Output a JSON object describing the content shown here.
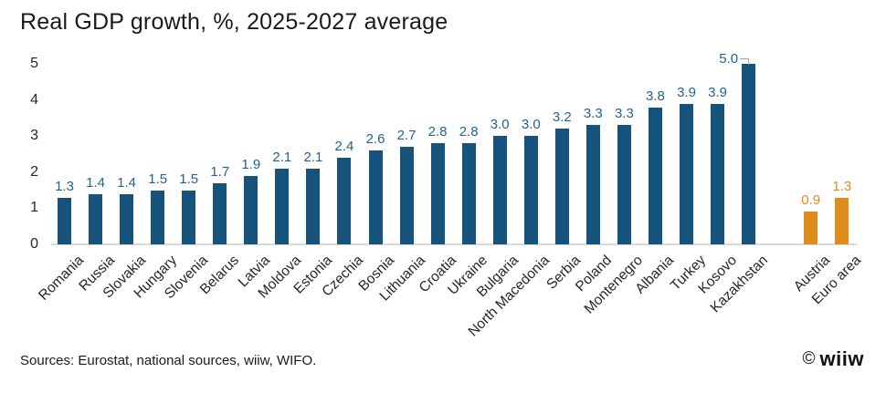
{
  "title": "Real GDP growth, %, 2025-2027 average",
  "footer": {
    "sources": "Sources: Eurostat, national sources, wiiw, WIFO.",
    "copyright_symbol": "©",
    "logo_text": "wiiw"
  },
  "colors": {
    "bar_main": "#15527c",
    "bar_benchmark": "#de8c1c",
    "value_label_main": "#25618f",
    "value_label_benchmark": "#de8c1c",
    "axis_line": "#d9d9d9",
    "tick_text": "#262626",
    "leader_line": "#a6a6a6"
  },
  "chart_data": {
    "type": "bar",
    "title": "Real GDP growth, %, 2025-2027 average",
    "xlabel": "",
    "ylabel": "",
    "ylim": [
      0,
      5
    ],
    "yticks": [
      0,
      1,
      2,
      3,
      4,
      5
    ],
    "grid": false,
    "legend": false,
    "value_labels": true,
    "groups": [
      {
        "color": "#15527c",
        "label_color": "#25618f",
        "bars": [
          {
            "label": "Romania",
            "value": 1.3
          },
          {
            "label": "Russia",
            "value": 1.4
          },
          {
            "label": "Slovakia",
            "value": 1.4
          },
          {
            "label": "Hungary",
            "value": 1.5
          },
          {
            "label": "Slovenia",
            "value": 1.5
          },
          {
            "label": "Belarus",
            "value": 1.7
          },
          {
            "label": "Latvia",
            "value": 1.9
          },
          {
            "label": "Moldova",
            "value": 2.1
          },
          {
            "label": "Estonia",
            "value": 2.1
          },
          {
            "label": "Czechia",
            "value": 2.4
          },
          {
            "label": "Bosnia",
            "value": 2.6
          },
          {
            "label": "Lithuania",
            "value": 2.7
          },
          {
            "label": "Croatia",
            "value": 2.8
          },
          {
            "label": "Ukraine",
            "value": 2.8
          },
          {
            "label": "Bulgaria",
            "value": 3.0
          },
          {
            "label": "North Macedonia",
            "value": 3.0
          },
          {
            "label": "Serbia",
            "value": 3.2
          },
          {
            "label": "Poland",
            "value": 3.3
          },
          {
            "label": "Montenegro",
            "value": 3.3
          },
          {
            "label": "Albania",
            "value": 3.8
          },
          {
            "label": "Turkey",
            "value": 3.9
          },
          {
            "label": "Kosovo",
            "value": 3.9
          },
          {
            "label": "Kazakhstan",
            "value": 5.0,
            "callout_leader_line": true
          }
        ]
      },
      {
        "color": "#de8c1c",
        "label_color": "#de8c1c",
        "bars": [
          {
            "label": "Austria",
            "value": 0.9
          },
          {
            "label": "Euro area",
            "value": 1.3
          }
        ]
      }
    ]
  }
}
